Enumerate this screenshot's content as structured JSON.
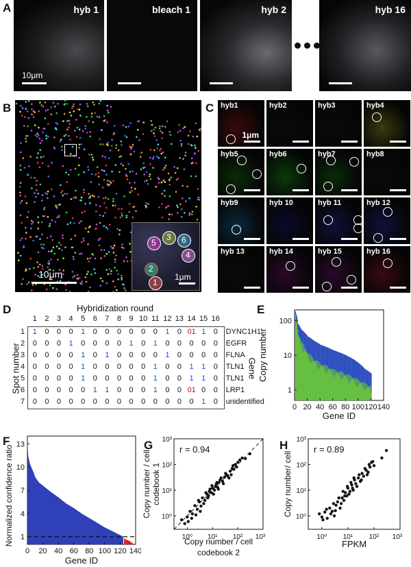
{
  "panels": {
    "A": "A",
    "B": "B",
    "C": "C",
    "D": "D",
    "E": "E",
    "F": "F",
    "G": "G",
    "H": "H"
  },
  "panel_a": {
    "frames": [
      "hyb 1",
      "bleach 1",
      "hyb 2",
      "hyb 16"
    ],
    "scale_label": "10μm"
  },
  "panel_b": {
    "scale_label": "10μm",
    "inset_scale_label": "1μm",
    "inset_spots": [
      "5",
      "3",
      "6",
      "4",
      "2",
      "1"
    ]
  },
  "panel_c": {
    "tiles": [
      "hyb1",
      "hyb2",
      "hyb3",
      "hyb4",
      "hyb5",
      "hyb6",
      "hyb7",
      "hyb8",
      "hyb9",
      "hyb 10",
      "hyb 11",
      "hyb 12",
      "hyb 13",
      "hyb 14",
      "hyb 15",
      "hyb 16"
    ],
    "scale_label": "1μm"
  },
  "panel_d": {
    "title": "Hybridization round",
    "ylabel": "Spot number",
    "gene_label": "Gene",
    "rounds": [
      "1",
      "2",
      "3",
      "4",
      "5",
      "6",
      "7",
      "8",
      "9",
      "10",
      "11",
      "12",
      "13",
      "14",
      "15",
      "16"
    ],
    "rows": [
      {
        "spot": "1",
        "gene": "DYNC1H1",
        "codes": [
          "1",
          "0",
          "0",
          "0",
          "1",
          "0",
          "0",
          "0",
          "0",
          "0",
          "0",
          "1",
          "0",
          "01",
          "1",
          "0"
        ]
      },
      {
        "spot": "2",
        "gene": "EGFR",
        "codes": [
          "0",
          "0",
          "0",
          "1",
          "0",
          "0",
          "0",
          "0",
          "1",
          "0",
          "1",
          "0",
          "0",
          "0",
          "0",
          "0"
        ]
      },
      {
        "spot": "3",
        "gene": "FLNA",
        "codes": [
          "0",
          "0",
          "0",
          "0",
          "1",
          "0",
          "1",
          "0",
          "0",
          "0",
          "0",
          "1",
          "0",
          "0",
          "0",
          "0"
        ]
      },
      {
        "spot": "4",
        "gene": "TLN1",
        "codes": [
          "0",
          "0",
          "0",
          "0",
          "1",
          "0",
          "0",
          "0",
          "0",
          "0",
          "1",
          "0",
          "0",
          "1",
          "1",
          "0"
        ]
      },
      {
        "spot": "5",
        "gene": "TLN1",
        "codes": [
          "0",
          "0",
          "0",
          "0",
          "1",
          "0",
          "0",
          "0",
          "0",
          "0",
          "1",
          "0",
          "0",
          "1",
          "1",
          "0"
        ]
      },
      {
        "spot": "6",
        "gene": "LRP1",
        "codes": [
          "0",
          "0",
          "0",
          "0",
          "0",
          "1",
          "1",
          "0",
          "0",
          "0",
          "1",
          "0",
          "0",
          "01",
          "0",
          "0"
        ]
      },
      {
        "spot": "7",
        "gene": "unidentified",
        "codes": [
          "0",
          "0",
          "0",
          "0",
          "0",
          "0",
          "0",
          "0",
          "0",
          "0",
          "0",
          "0",
          "0",
          "0",
          "1",
          "0"
        ]
      }
    ],
    "colors": {
      "one": "#1f4fc7",
      "error": "#d01010",
      "zero": "#111111"
    }
  },
  "chart_data": [
    {
      "panel": "E",
      "type": "bar",
      "xlabel": "Gene ID",
      "ylabel": "Copy number",
      "xlim": [
        0,
        140
      ],
      "ylim_log": [
        1,
        100
      ],
      "xticks": [
        "0",
        "20",
        "40",
        "60",
        "80",
        "100",
        "120",
        "140"
      ],
      "yticks": [
        "1",
        "10",
        "100"
      ],
      "series": [
        {
          "color": "#3050c0",
          "x": [
            1,
            5,
            10,
            20,
            30,
            40,
            50,
            60,
            70,
            80,
            90,
            100,
            110,
            120
          ],
          "values": [
            180,
            80,
            55,
            35,
            26,
            20,
            17,
            14,
            12,
            10,
            8,
            6,
            4,
            3
          ]
        },
        {
          "color": "#66c040",
          "x": [
            1,
            5,
            10,
            20,
            30,
            40,
            50,
            60,
            70,
            80,
            90,
            100,
            110,
            120
          ],
          "values": [
            150,
            45,
            25,
            12,
            8,
            6,
            5,
            4,
            3.5,
            3,
            2.5,
            2,
            1.6,
            1.3
          ]
        }
      ]
    },
    {
      "panel": "F",
      "type": "bar",
      "xlabel": "Gene ID",
      "ylabel": "Normalized confidence ratio",
      "xlim": [
        0,
        140
      ],
      "ylim": [
        0,
        14
      ],
      "xticks": [
        "0",
        "20",
        "40",
        "60",
        "80",
        "100",
        "120",
        "140"
      ],
      "yticks": [
        "1",
        "4",
        "7",
        "10",
        "13"
      ],
      "threshold": 1,
      "series": [
        {
          "color": "#3040b8",
          "x": [
            0,
            1,
            3,
            5,
            8,
            10,
            15,
            20,
            30,
            40,
            50,
            60,
            70,
            80,
            90,
            100,
            110,
            120,
            124
          ],
          "values": [
            13.5,
            11.5,
            10.5,
            10,
            9.3,
            8.7,
            8,
            7.6,
            6.8,
            6.1,
            5.3,
            4.7,
            4.0,
            3.4,
            2.8,
            2.2,
            1.7,
            1.2,
            1.0
          ]
        },
        {
          "color": "#e02020",
          "x": [
            125,
            128,
            131,
            134,
            137
          ],
          "values": [
            0.8,
            0.6,
            0.5,
            0.3,
            0.1
          ]
        }
      ]
    },
    {
      "panel": "G",
      "type": "scatter",
      "xlabel": "Copy number / cell codebook 2",
      "ylabel": "Copy number / cell codebook 1",
      "annotation": "r = 0.94",
      "log": true,
      "xticks": [
        "10⁰",
        "10¹",
        "10²",
        "10³"
      ],
      "yticks": [
        "10⁰",
        "10¹",
        "10²",
        "10³"
      ],
      "points": [
        [
          1,
          0.9
        ],
        [
          1.3,
          1.5
        ],
        [
          1.6,
          1.2
        ],
        [
          2,
          2.5
        ],
        [
          2.5,
          1.8
        ],
        [
          3,
          3.5
        ],
        [
          3.5,
          2.4
        ],
        [
          4,
          5
        ],
        [
          5,
          4
        ],
        [
          6,
          7
        ],
        [
          7,
          6
        ],
        [
          8,
          11
        ],
        [
          9,
          8
        ],
        [
          10,
          12
        ],
        [
          12,
          10
        ],
        [
          14,
          17
        ],
        [
          16,
          13
        ],
        [
          18,
          20
        ],
        [
          20,
          25
        ],
        [
          25,
          22
        ],
        [
          30,
          32
        ],
        [
          35,
          40
        ],
        [
          40,
          36
        ],
        [
          50,
          55
        ],
        [
          60,
          70
        ],
        [
          70,
          65
        ],
        [
          80,
          100
        ],
        [
          100,
          120
        ],
        [
          150,
          180
        ],
        [
          200,
          170
        ],
        [
          0.6,
          0.7
        ],
        [
          0.8,
          0.5
        ],
        [
          1.1,
          0.6
        ],
        [
          1.5,
          0.8
        ],
        [
          2.2,
          1.1
        ],
        [
          2.8,
          4
        ],
        [
          3.3,
          1.5
        ],
        [
          4.5,
          3
        ],
        [
          5.5,
          8
        ],
        [
          6.5,
          5
        ],
        [
          7.5,
          9
        ],
        [
          9.5,
          15
        ],
        [
          11,
          7
        ],
        [
          13,
          14
        ],
        [
          15,
          20
        ],
        [
          17,
          11
        ],
        [
          22,
          30
        ],
        [
          27,
          18
        ],
        [
          33,
          45
        ],
        [
          45,
          30
        ],
        [
          55,
          40
        ],
        [
          65,
          90
        ],
        [
          90,
          80
        ],
        [
          120,
          150
        ],
        [
          300,
          260
        ]
      ]
    },
    {
      "panel": "H",
      "type": "scatter",
      "xlabel": "FPKM",
      "ylabel": "Copy number/ cell",
      "annotation": "r = 0.89",
      "log": true,
      "xticks": [
        "10⁰",
        "10¹",
        "10²",
        "10³"
      ],
      "yticks": [
        "10⁰",
        "10¹",
        "10²",
        "10³"
      ],
      "points": [
        [
          1,
          0.9
        ],
        [
          1.3,
          1.4
        ],
        [
          1.6,
          0.8
        ],
        [
          2,
          2
        ],
        [
          2.5,
          1.5
        ],
        [
          3,
          1
        ],
        [
          3.5,
          2.6
        ],
        [
          4,
          3.5
        ],
        [
          5,
          2
        ],
        [
          6,
          5
        ],
        [
          7,
          4
        ],
        [
          8,
          8
        ],
        [
          9,
          6
        ],
        [
          10,
          12
        ],
        [
          12,
          9
        ],
        [
          14,
          16
        ],
        [
          16,
          10
        ],
        [
          18,
          25
        ],
        [
          20,
          18
        ],
        [
          25,
          30
        ],
        [
          30,
          22
        ],
        [
          35,
          45
        ],
        [
          40,
          35
        ],
        [
          50,
          60
        ],
        [
          60,
          50
        ],
        [
          70,
          80
        ],
        [
          80,
          120
        ],
        [
          100,
          90
        ],
        [
          200,
          180
        ],
        [
          300,
          350
        ],
        [
          0.8,
          1.2
        ],
        [
          1.1,
          0.7
        ],
        [
          1.5,
          1.8
        ],
        [
          2.2,
          1.2
        ],
        [
          2.8,
          3
        ],
        [
          3.3,
          1.6
        ],
        [
          4.5,
          5
        ],
        [
          5.5,
          3
        ],
        [
          6.5,
          9
        ],
        [
          7.5,
          6
        ],
        [
          9.5,
          14
        ],
        [
          11,
          7
        ],
        [
          13,
          20
        ],
        [
          15,
          12
        ],
        [
          17,
          30
        ],
        [
          22,
          14
        ],
        [
          27,
          40
        ],
        [
          33,
          25
        ],
        [
          45,
          70
        ],
        [
          55,
          40
        ],
        [
          65,
          100
        ],
        [
          90,
          130
        ]
      ]
    }
  ]
}
